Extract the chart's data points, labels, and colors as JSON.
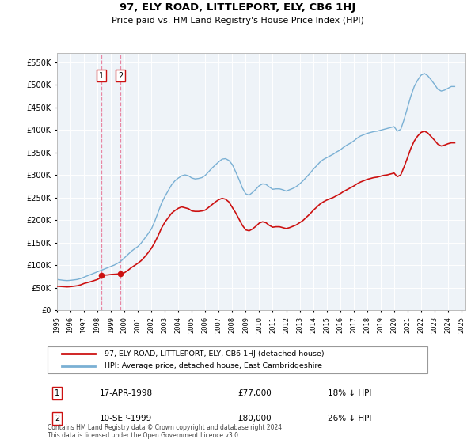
{
  "title": "97, ELY ROAD, LITTLEPORT, ELY, CB6 1HJ",
  "subtitle": "Price paid vs. HM Land Registry's House Price Index (HPI)",
  "hpi_color": "#7ab0d4",
  "price_color": "#cc1111",
  "vline_color": "#e87a9a",
  "purchases": [
    {
      "label": "1",
      "date_num": 1998.29,
      "price": 77000
    },
    {
      "label": "2",
      "date_num": 1999.7,
      "price": 80000
    }
  ],
  "hpi_years": [
    1995.0,
    1995.25,
    1995.5,
    1995.75,
    1996.0,
    1996.25,
    1996.5,
    1996.75,
    1997.0,
    1997.25,
    1997.5,
    1997.75,
    1998.0,
    1998.25,
    1998.5,
    1998.75,
    1999.0,
    1999.25,
    1999.5,
    1999.75,
    2000.0,
    2000.25,
    2000.5,
    2000.75,
    2001.0,
    2001.25,
    2001.5,
    2001.75,
    2002.0,
    2002.25,
    2002.5,
    2002.75,
    2003.0,
    2003.25,
    2003.5,
    2003.75,
    2004.0,
    2004.25,
    2004.5,
    2004.75,
    2005.0,
    2005.25,
    2005.5,
    2005.75,
    2006.0,
    2006.25,
    2006.5,
    2006.75,
    2007.0,
    2007.25,
    2007.5,
    2007.75,
    2008.0,
    2008.25,
    2008.5,
    2008.75,
    2009.0,
    2009.25,
    2009.5,
    2009.75,
    2010.0,
    2010.25,
    2010.5,
    2010.75,
    2011.0,
    2011.25,
    2011.5,
    2011.75,
    2012.0,
    2012.25,
    2012.5,
    2012.75,
    2013.0,
    2013.25,
    2013.5,
    2013.75,
    2014.0,
    2014.25,
    2014.5,
    2014.75,
    2015.0,
    2015.25,
    2015.5,
    2015.75,
    2016.0,
    2016.25,
    2016.5,
    2016.75,
    2017.0,
    2017.25,
    2017.5,
    2017.75,
    2018.0,
    2018.25,
    2018.5,
    2018.75,
    2019.0,
    2019.25,
    2019.5,
    2019.75,
    2020.0,
    2020.25,
    2020.5,
    2020.75,
    2021.0,
    2021.25,
    2021.5,
    2021.75,
    2022.0,
    2022.25,
    2022.5,
    2022.75,
    2023.0,
    2023.25,
    2023.5,
    2023.75,
    2024.0,
    2024.25,
    2024.5
  ],
  "hpi_values": [
    68000,
    67000,
    66000,
    65500,
    66000,
    67000,
    68000,
    70000,
    73000,
    76000,
    79000,
    82000,
    85000,
    88000,
    91000,
    94000,
    97000,
    100000,
    104000,
    109000,
    116000,
    123000,
    130000,
    136000,
    141000,
    149000,
    159000,
    169000,
    180000,
    197000,
    217000,
    237000,
    252000,
    265000,
    278000,
    287000,
    293000,
    298000,
    300000,
    298000,
    293000,
    291000,
    292000,
    294000,
    299000,
    307000,
    315000,
    322000,
    329000,
    335000,
    336000,
    332000,
    323000,
    307000,
    290000,
    271000,
    258000,
    255000,
    261000,
    268000,
    276000,
    280000,
    279000,
    273000,
    268000,
    269000,
    269000,
    267000,
    264000,
    267000,
    270000,
    274000,
    280000,
    287000,
    295000,
    303000,
    312000,
    320000,
    328000,
    334000,
    338000,
    342000,
    346000,
    351000,
    355000,
    361000,
    366000,
    370000,
    375000,
    381000,
    386000,
    389000,
    392000,
    394000,
    396000,
    397000,
    399000,
    401000,
    403000,
    405000,
    407000,
    397000,
    401000,
    423000,
    449000,
    475000,
    496000,
    510000,
    521000,
    525000,
    520000,
    511000,
    501000,
    490000,
    486000,
    488000,
    492000,
    496000,
    496000
  ],
  "pp_years": [
    1995.0,
    1995.25,
    1995.5,
    1995.75,
    1996.0,
    1996.25,
    1996.5,
    1996.75,
    1997.0,
    1997.25,
    1997.5,
    1997.75,
    1998.0,
    1998.25,
    1998.29,
    1998.5,
    1998.75,
    1999.0,
    1999.25,
    1999.5,
    1999.7,
    1999.75,
    2000.0,
    2000.25,
    2000.5,
    2000.75,
    2001.0,
    2001.25,
    2001.5,
    2001.75,
    2002.0,
    2002.25,
    2002.5,
    2002.75,
    2003.0,
    2003.25,
    2003.5,
    2003.75,
    2004.0,
    2004.25,
    2004.5,
    2004.75,
    2005.0,
    2005.25,
    2005.5,
    2005.75,
    2006.0,
    2006.25,
    2006.5,
    2006.75,
    2007.0,
    2007.25,
    2007.5,
    2007.75,
    2008.0,
    2008.25,
    2008.5,
    2008.75,
    2009.0,
    2009.25,
    2009.5,
    2009.75,
    2010.0,
    2010.25,
    2010.5,
    2010.75,
    2011.0,
    2011.25,
    2011.5,
    2011.75,
    2012.0,
    2012.25,
    2012.5,
    2012.75,
    2013.0,
    2013.25,
    2013.5,
    2013.75,
    2014.0,
    2014.25,
    2014.5,
    2014.75,
    2015.0,
    2015.25,
    2015.5,
    2015.75,
    2016.0,
    2016.25,
    2016.5,
    2016.75,
    2017.0,
    2017.25,
    2017.5,
    2017.75,
    2018.0,
    2018.25,
    2018.5,
    2018.75,
    2019.0,
    2019.25,
    2019.5,
    2019.75,
    2020.0,
    2020.25,
    2020.5,
    2020.75,
    2021.0,
    2021.25,
    2021.5,
    2021.75,
    2022.0,
    2022.25,
    2022.5,
    2022.75,
    2023.0,
    2023.25,
    2023.5,
    2023.75,
    2024.0,
    2024.25,
    2024.5
  ],
  "pp_values": [
    53000,
    52500,
    52000,
    51500,
    52000,
    53000,
    54000,
    56000,
    59000,
    61000,
    63000,
    65500,
    68000,
    72000,
    77000,
    77500,
    78000,
    79000,
    79500,
    80000,
    80000,
    80500,
    83000,
    88000,
    94000,
    99000,
    104000,
    110000,
    118000,
    127000,
    137000,
    150000,
    165000,
    182000,
    195000,
    205000,
    215000,
    221000,
    226000,
    229000,
    227000,
    225000,
    220000,
    219000,
    219000,
    220000,
    222000,
    228000,
    234000,
    240000,
    245000,
    248000,
    246000,
    240000,
    228000,
    216000,
    202000,
    188000,
    178000,
    176000,
    180000,
    186000,
    193000,
    196000,
    194000,
    188000,
    184000,
    185000,
    185000,
    183000,
    181000,
    183000,
    186000,
    189000,
    194000,
    199000,
    206000,
    213000,
    221000,
    228000,
    235000,
    240000,
    244000,
    247000,
    250000,
    254000,
    258000,
    263000,
    267000,
    271000,
    275000,
    280000,
    284000,
    287000,
    290000,
    292000,
    294000,
    295000,
    297000,
    299000,
    300000,
    302000,
    304000,
    296000,
    300000,
    318000,
    338000,
    359000,
    375000,
    386000,
    394000,
    397000,
    393000,
    385000,
    377000,
    368000,
    364000,
    366000,
    369000,
    371000,
    371000
  ],
  "xlim": [
    1995.0,
    2025.3
  ],
  "ylim": [
    0,
    570000
  ],
  "yticks": [
    0,
    50000,
    100000,
    150000,
    200000,
    250000,
    300000,
    350000,
    400000,
    450000,
    500000,
    550000
  ],
  "xticks": [
    1995,
    1996,
    1997,
    1998,
    1999,
    2000,
    2001,
    2002,
    2003,
    2004,
    2005,
    2006,
    2007,
    2008,
    2009,
    2010,
    2011,
    2012,
    2013,
    2014,
    2015,
    2016,
    2017,
    2018,
    2019,
    2020,
    2021,
    2022,
    2023,
    2024,
    2025
  ],
  "legend_label_price": "97, ELY ROAD, LITTLEPORT, ELY, CB6 1HJ (detached house)",
  "legend_label_hpi": "HPI: Average price, detached house, East Cambridgeshire",
  "table_rows": [
    {
      "num": "1",
      "date": "17-APR-1998",
      "price": "£77,000",
      "pct": "18% ↓ HPI"
    },
    {
      "num": "2",
      "date": "10-SEP-1999",
      "price": "£80,000",
      "pct": "26% ↓ HPI"
    }
  ],
  "footer_text": "Contains HM Land Registry data © Crown copyright and database right 2024.\nThis data is licensed under the Open Government Licence v3.0.",
  "chart_bg": "#eef3f8",
  "grid_color": "#ffffff"
}
